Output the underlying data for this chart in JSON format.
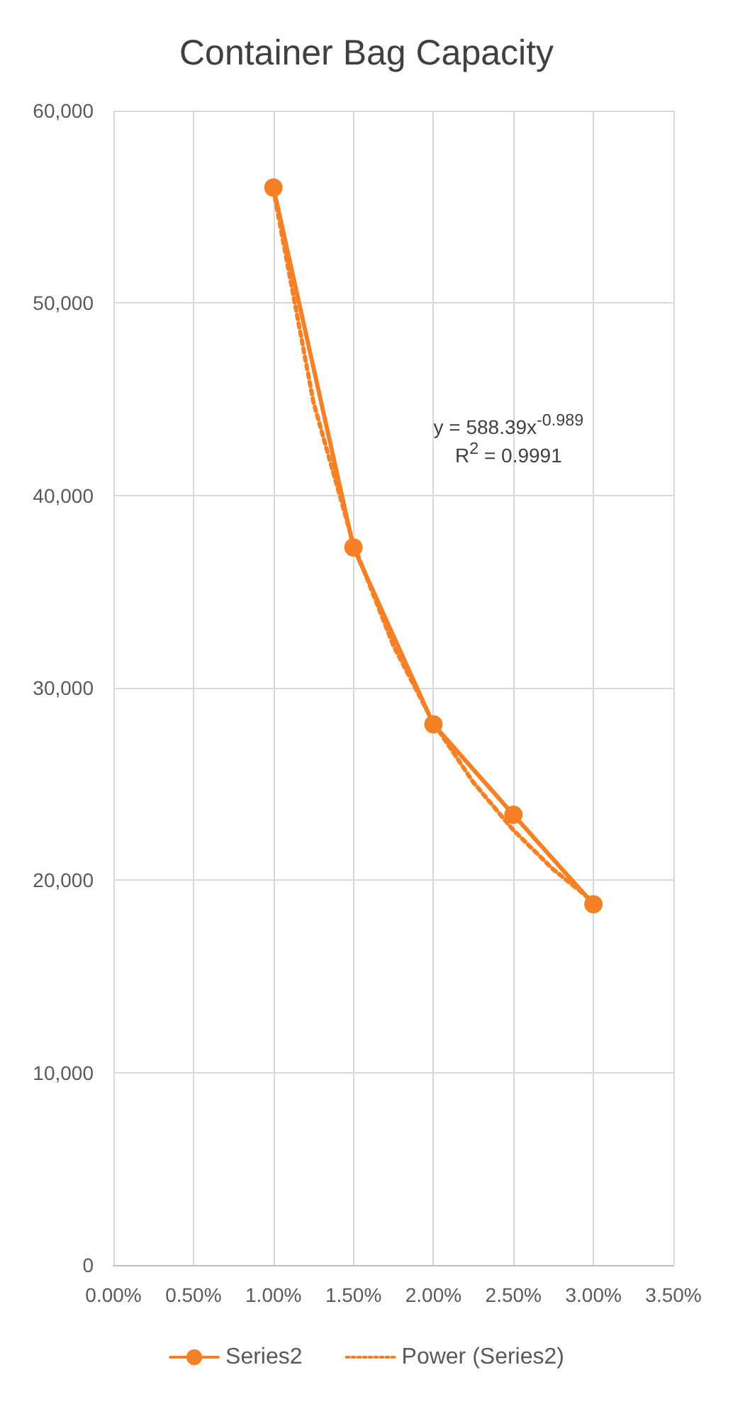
{
  "chart_data": {
    "type": "line",
    "title": "Container Bag Capacity",
    "xlim": [
      0,
      3.5
    ],
    "xticks": [
      {
        "value": 0,
        "label": "0.00%"
      },
      {
        "value": 0.5,
        "label": "0.50%"
      },
      {
        "value": 1,
        "label": "1.00%"
      },
      {
        "value": 1.5,
        "label": "1.50%"
      },
      {
        "value": 2,
        "label": "2.00%"
      },
      {
        "value": 2.5,
        "label": "2.50%"
      },
      {
        "value": 3,
        "label": "3.00%"
      },
      {
        "value": 3.5,
        "label": "3.50%"
      }
    ],
    "ylim": [
      0,
      60000
    ],
    "yticks": [
      {
        "value": 0,
        "label": "0"
      },
      {
        "value": 10000,
        "label": "10,000"
      },
      {
        "value": 20000,
        "label": "20,000"
      },
      {
        "value": 30000,
        "label": "30,000"
      },
      {
        "value": 40000,
        "label": "40,000"
      },
      {
        "value": 50000,
        "label": "50,000"
      },
      {
        "value": 60000,
        "label": "60,000"
      }
    ],
    "grid": true,
    "legend": "bottom",
    "series": [
      {
        "name": "Series2",
        "color": "#f58025",
        "marker": "circle",
        "line_style": "solid",
        "x": [
          1,
          1.5,
          2,
          2.5,
          3
        ],
        "values": [
          56000,
          37300,
          28100,
          23400,
          18750
        ]
      },
      {
        "name": "Power (Series2)",
        "color": "#f58025",
        "marker": "none",
        "line_style": "dotted",
        "x": [
          1,
          1.25,
          1.5,
          1.75,
          2,
          2.25,
          2.5,
          2.75,
          3
        ],
        "values": [
          55900,
          44850,
          37480,
          32190,
          28180,
          25080,
          22600,
          20550,
          18880
        ]
      }
    ],
    "annotations": [
      "y = 588.39x$^{-0.989}$",
      "R$^{2}$ = 0.9991"
    ]
  }
}
